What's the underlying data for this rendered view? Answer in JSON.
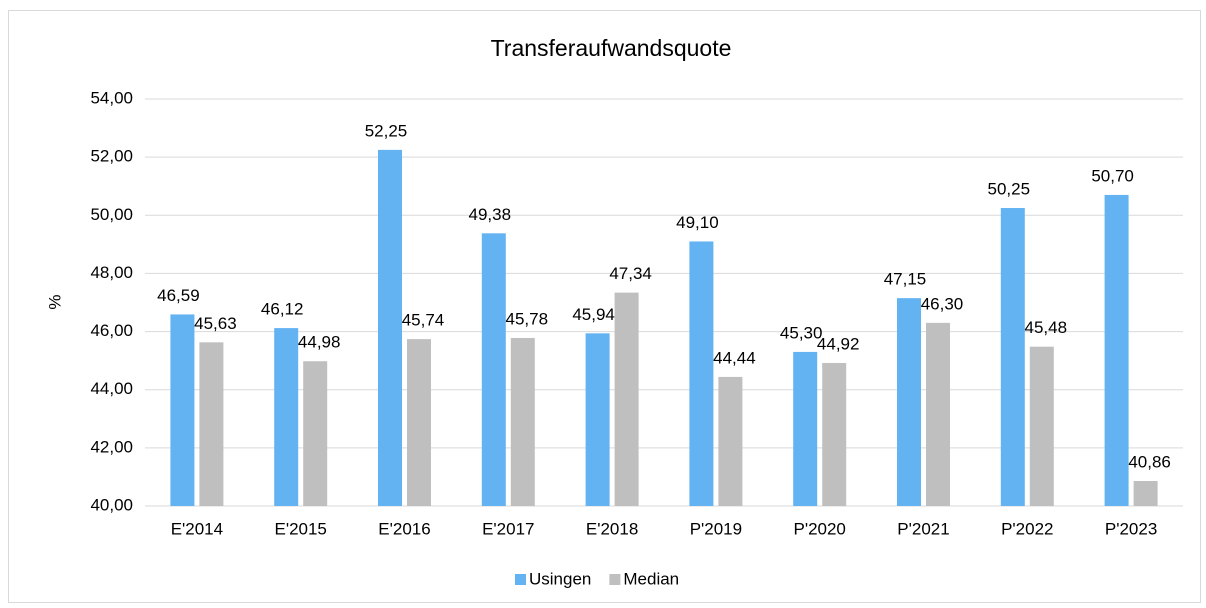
{
  "chart_data": {
    "type": "bar",
    "title": "Transferaufwandsquote",
    "y_label": "%",
    "categories": [
      "E'2014",
      "E'2015",
      "E'2016",
      "E'2017",
      "E'2018",
      "P'2019",
      "P'2020",
      "P'2021",
      "P'2022",
      "P'2023"
    ],
    "series": [
      {
        "name": "Usingen",
        "color": "#63b3f3",
        "values": [
          46.59,
          46.12,
          52.25,
          49.38,
          45.94,
          49.1,
          45.3,
          47.15,
          50.25,
          50.7
        ],
        "value_labels": [
          "46,59",
          "46,12",
          "52,25",
          "49,38",
          "45,94",
          "49,10",
          "45,30",
          "47,15",
          "50,25",
          "50,70"
        ]
      },
      {
        "name": "Median",
        "color": "#bfbfbf",
        "values": [
          45.63,
          44.98,
          45.74,
          45.78,
          47.34,
          44.44,
          44.92,
          46.3,
          45.48,
          40.86
        ],
        "value_labels": [
          "45,63",
          "44,98",
          "45,74",
          "45,78",
          "47,34",
          "44,44",
          "44,92",
          "46,30",
          "45,48",
          "40,86"
        ]
      }
    ],
    "ylim": [
      40,
      54
    ],
    "yticks": [
      {
        "value": 40,
        "label": "40,00"
      },
      {
        "value": 42,
        "label": "42,00"
      },
      {
        "value": 44,
        "label": "44,00"
      },
      {
        "value": 46,
        "label": "46,00"
      },
      {
        "value": 48,
        "label": "48,00"
      },
      {
        "value": 50,
        "label": "50,00"
      },
      {
        "value": 52,
        "label": "52,00"
      },
      {
        "value": 54,
        "label": "54,00"
      }
    ],
    "grid": true,
    "legend": "bottom"
  }
}
